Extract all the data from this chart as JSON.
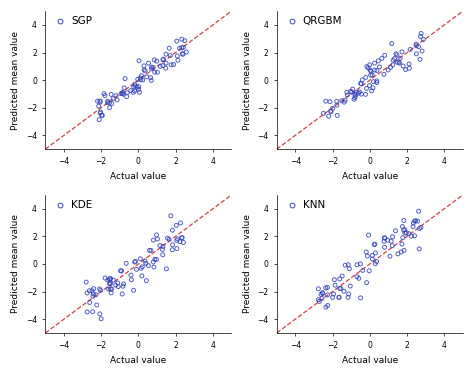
{
  "subplots": [
    {
      "title": "SGP"
    },
    {
      "title": "QRGBM"
    },
    {
      "title": "KDE"
    },
    {
      "title": "KNN"
    }
  ],
  "xlabel": "Actual value",
  "ylabel": "Predicted mean value",
  "xlim": [
    -5,
    5
  ],
  "ylim": [
    -5,
    5
  ],
  "xticks": [
    -4,
    -2,
    0,
    2,
    4
  ],
  "yticks": [
    -4,
    -2,
    0,
    2,
    4
  ],
  "dot_color": "#3344bb",
  "dot_alpha": 0.85,
  "dot_size": 8,
  "dot_linewidth": 0.7,
  "line_color": "#cc4444",
  "line_style": "--",
  "line_width": 0.9,
  "fig_facecolor": "white",
  "ax_facecolor": "white",
  "datasets": {
    "SGP": {
      "x": [
        -2.0,
        -1.8,
        -1.7,
        -1.5,
        -1.4,
        -1.3,
        -1.2,
        -1.1,
        -1.0,
        -0.9,
        -0.8,
        -0.7,
        -0.6,
        -0.5,
        -0.4,
        -0.3,
        -0.2,
        -0.1,
        0.0,
        0.1,
        0.2,
        0.3,
        0.4,
        0.5,
        0.6,
        0.7,
        0.8,
        0.9,
        1.0,
        1.1,
        1.2,
        1.3,
        1.4,
        1.5,
        1.6,
        1.7,
        1.8,
        2.0,
        2.2,
        2.5,
        -1.9,
        -1.6,
        -1.1,
        -0.8,
        -0.5,
        -0.2,
        0.1,
        0.3,
        0.5,
        0.7,
        0.8,
        0.9,
        1.0,
        1.1,
        1.2,
        1.3,
        1.5,
        1.7,
        2.0,
        2.3,
        -1.5,
        -1.0,
        -0.5,
        0.0,
        0.5,
        1.0,
        1.5,
        2.0,
        -1.3,
        -0.7,
        -0.1,
        0.4,
        0.9,
        1.4,
        1.9,
        2.3,
        0.2,
        0.6,
        1.1,
        1.6
      ],
      "y": [
        -2.2,
        -2.0,
        -1.9,
        -1.6,
        -1.5,
        -1.4,
        -1.1,
        -1.2,
        -0.8,
        -1.0,
        -0.7,
        -0.9,
        -0.5,
        -0.6,
        -0.3,
        -0.2,
        -0.1,
        0.0,
        0.1,
        0.2,
        0.0,
        0.4,
        0.3,
        0.5,
        0.7,
        0.8,
        0.9,
        1.0,
        1.1,
        1.2,
        1.0,
        1.3,
        1.5,
        1.4,
        1.6,
        1.8,
        1.9,
        2.1,
        2.3,
        2.6,
        -2.1,
        -1.7,
        -1.0,
        -0.6,
        -0.4,
        -0.3,
        0.2,
        0.4,
        0.6,
        0.9,
        0.7,
        1.1,
        1.0,
        1.2,
        1.3,
        1.4,
        1.6,
        1.8,
        2.1,
        2.4,
        -1.3,
        -0.8,
        -0.4,
        0.2,
        0.6,
        1.1,
        1.6,
        2.0,
        -1.1,
        -0.5,
        0.0,
        0.5,
        1.0,
        1.5,
        2.0,
        2.4,
        0.3,
        0.7,
        1.2,
        1.7
      ]
    },
    "QRGBM": {
      "x": [
        -2.0,
        -1.8,
        -1.5,
        -1.3,
        -1.0,
        -0.8,
        -0.5,
        -0.3,
        0.0,
        0.2,
        0.5,
        0.7,
        1.0,
        1.2,
        1.5,
        1.7,
        2.0,
        2.2,
        2.5,
        2.8,
        -1.9,
        -1.6,
        -1.2,
        -0.9,
        -0.6,
        -0.3,
        0.0,
        0.3,
        0.6,
        0.9,
        1.2,
        1.5,
        1.8,
        2.1,
        2.4,
        -1.7,
        -1.3,
        -0.9,
        -0.5,
        -0.1,
        0.3,
        0.7,
        1.1,
        1.5,
        1.9,
        2.3,
        -1.4,
        -1.0,
        -0.6,
        -0.2,
        0.2,
        0.6,
        1.0,
        1.4,
        1.8,
        2.2,
        -1.1,
        -0.7,
        -0.3,
        0.1,
        0.5,
        0.9,
        1.3,
        1.7,
        2.1,
        0.0,
        0.4,
        0.8,
        1.2,
        1.6,
        2.0,
        2.4,
        0.2,
        0.6,
        1.0,
        1.4,
        1.8,
        2.2,
        0.4,
        0.8
      ],
      "y": [
        -2.5,
        -2.0,
        -1.8,
        -1.5,
        -1.2,
        -0.9,
        -0.6,
        -0.4,
        0.0,
        0.3,
        0.6,
        0.8,
        1.1,
        1.3,
        1.6,
        1.8,
        2.1,
        2.3,
        2.6,
        3.0,
        -2.2,
        -1.7,
        -1.3,
        -1.0,
        -0.7,
        -0.4,
        0.1,
        0.4,
        0.7,
        1.0,
        1.3,
        1.6,
        1.9,
        2.2,
        2.5,
        -2.0,
        -1.5,
        -1.0,
        -0.6,
        -0.2,
        0.4,
        0.8,
        1.2,
        1.6,
        2.0,
        2.4,
        -1.6,
        -1.1,
        -0.7,
        -0.3,
        0.3,
        0.7,
        1.1,
        1.5,
        1.9,
        2.3,
        -1.3,
        -0.8,
        -0.4,
        0.2,
        0.6,
        1.0,
        1.4,
        1.8,
        2.2,
        0.1,
        0.5,
        0.9,
        1.3,
        1.7,
        2.1,
        2.5,
        0.3,
        0.7,
        1.1,
        1.5,
        1.9,
        2.3,
        0.5,
        0.9
      ]
    },
    "KDE": {
      "x": [
        -2.5,
        -2.2,
        -2.0,
        -1.8,
        -1.5,
        -1.3,
        -1.0,
        -0.8,
        -0.5,
        -0.3,
        0.0,
        0.2,
        0.5,
        0.7,
        1.0,
        1.2,
        1.5,
        1.7,
        2.0,
        2.2,
        -2.3,
        -2.0,
        -1.7,
        -1.4,
        -1.1,
        -0.8,
        -0.5,
        -0.2,
        0.1,
        0.4,
        0.7,
        1.0,
        1.3,
        1.6,
        1.9,
        2.2,
        -2.1,
        -1.8,
        -1.5,
        -1.2,
        -0.9,
        -0.6,
        -0.3,
        0.0,
        0.3,
        0.6,
        0.9,
        1.2,
        1.5,
        1.8,
        2.1,
        -1.9,
        -1.6,
        -1.3,
        -1.0,
        -0.7,
        -0.4,
        -0.1,
        0.2,
        0.5,
        0.8,
        1.1,
        1.4,
        1.7,
        2.0,
        -1.5,
        -1.2,
        -0.9,
        -0.6,
        -0.3,
        0.0,
        0.3,
        0.6,
        0.9,
        1.2,
        1.5,
        1.8,
        -1.0,
        -0.5,
        0.0
      ],
      "y": [
        -2.8,
        -2.3,
        -2.2,
        -2.0,
        -1.7,
        -1.5,
        -1.1,
        -0.9,
        -0.4,
        -0.2,
        0.2,
        0.4,
        0.7,
        0.9,
        1.2,
        1.4,
        1.7,
        1.9,
        2.2,
        2.5,
        -2.5,
        -2.2,
        -1.9,
        -1.6,
        -1.3,
        -0.9,
        -0.5,
        -0.1,
        0.2,
        0.5,
        0.8,
        1.1,
        1.4,
        1.7,
        2.0,
        2.3,
        -2.3,
        -2.0,
        -1.7,
        -1.4,
        -1.0,
        -0.7,
        -0.3,
        0.1,
        0.4,
        0.7,
        1.0,
        1.3,
        1.6,
        1.9,
        2.2,
        -2.1,
        -1.8,
        -1.4,
        -1.1,
        -0.8,
        -0.5,
        -0.1,
        0.3,
        0.6,
        0.9,
        1.2,
        1.5,
        1.8,
        2.1,
        -1.8,
        -1.4,
        -1.0,
        -0.7,
        -0.3,
        0.1,
        0.4,
        0.7,
        1.0,
        1.3,
        1.6,
        1.9,
        -1.2,
        -0.6,
        0.2
      ]
    },
    "KNN": {
      "x": [
        -2.5,
        -2.2,
        -2.0,
        -1.8,
        -1.5,
        -1.3,
        -1.0,
        -0.8,
        -0.5,
        -0.3,
        0.0,
        0.2,
        0.5,
        0.7,
        1.0,
        1.2,
        1.5,
        1.7,
        2.0,
        2.3,
        -2.3,
        -2.0,
        -1.7,
        -1.4,
        -1.1,
        -0.8,
        -0.5,
        -0.2,
        0.1,
        0.4,
        0.7,
        1.0,
        1.3,
        1.6,
        1.9,
        2.2,
        -2.1,
        -1.8,
        -1.5,
        -1.2,
        -0.9,
        -0.6,
        -0.3,
        0.0,
        0.3,
        0.6,
        0.9,
        1.2,
        1.5,
        1.8,
        2.1,
        -1.9,
        -1.6,
        -1.3,
        -1.0,
        -0.7,
        -0.4,
        -0.1,
        0.2,
        0.5,
        0.8,
        1.1,
        1.4,
        1.7,
        2.0,
        -1.5,
        -1.2,
        -0.9,
        -0.6,
        -0.3,
        0.0,
        0.3,
        0.6,
        0.9,
        1.2,
        1.5,
        1.8,
        2.2,
        -0.5,
        0.5
      ],
      "y": [
        -3.0,
        -2.5,
        -2.2,
        -1.9,
        -1.6,
        -1.4,
        -1.0,
        -0.8,
        -0.4,
        -0.2,
        0.1,
        0.3,
        0.6,
        0.8,
        1.1,
        1.3,
        1.6,
        1.8,
        2.1,
        2.4,
        -2.6,
        -2.2,
        -1.8,
        -1.5,
        -1.2,
        -0.8,
        -0.4,
        -0.1,
        0.2,
        0.5,
        0.8,
        1.1,
        1.4,
        1.7,
        2.0,
        2.3,
        -2.4,
        -2.0,
        -1.6,
        -1.3,
        -0.9,
        -0.6,
        -0.2,
        0.1,
        0.4,
        0.7,
        1.0,
        1.3,
        1.6,
        1.9,
        2.2,
        -2.2,
        -1.7,
        -1.3,
        -1.0,
        -0.7,
        -0.4,
        -0.1,
        0.3,
        0.6,
        0.9,
        1.2,
        1.5,
        1.8,
        2.1,
        -1.9,
        -1.5,
        -1.1,
        -0.7,
        -0.3,
        0.1,
        0.4,
        0.7,
        1.0,
        1.3,
        1.6,
        1.9,
        2.3,
        -0.4,
        0.6
      ]
    }
  }
}
